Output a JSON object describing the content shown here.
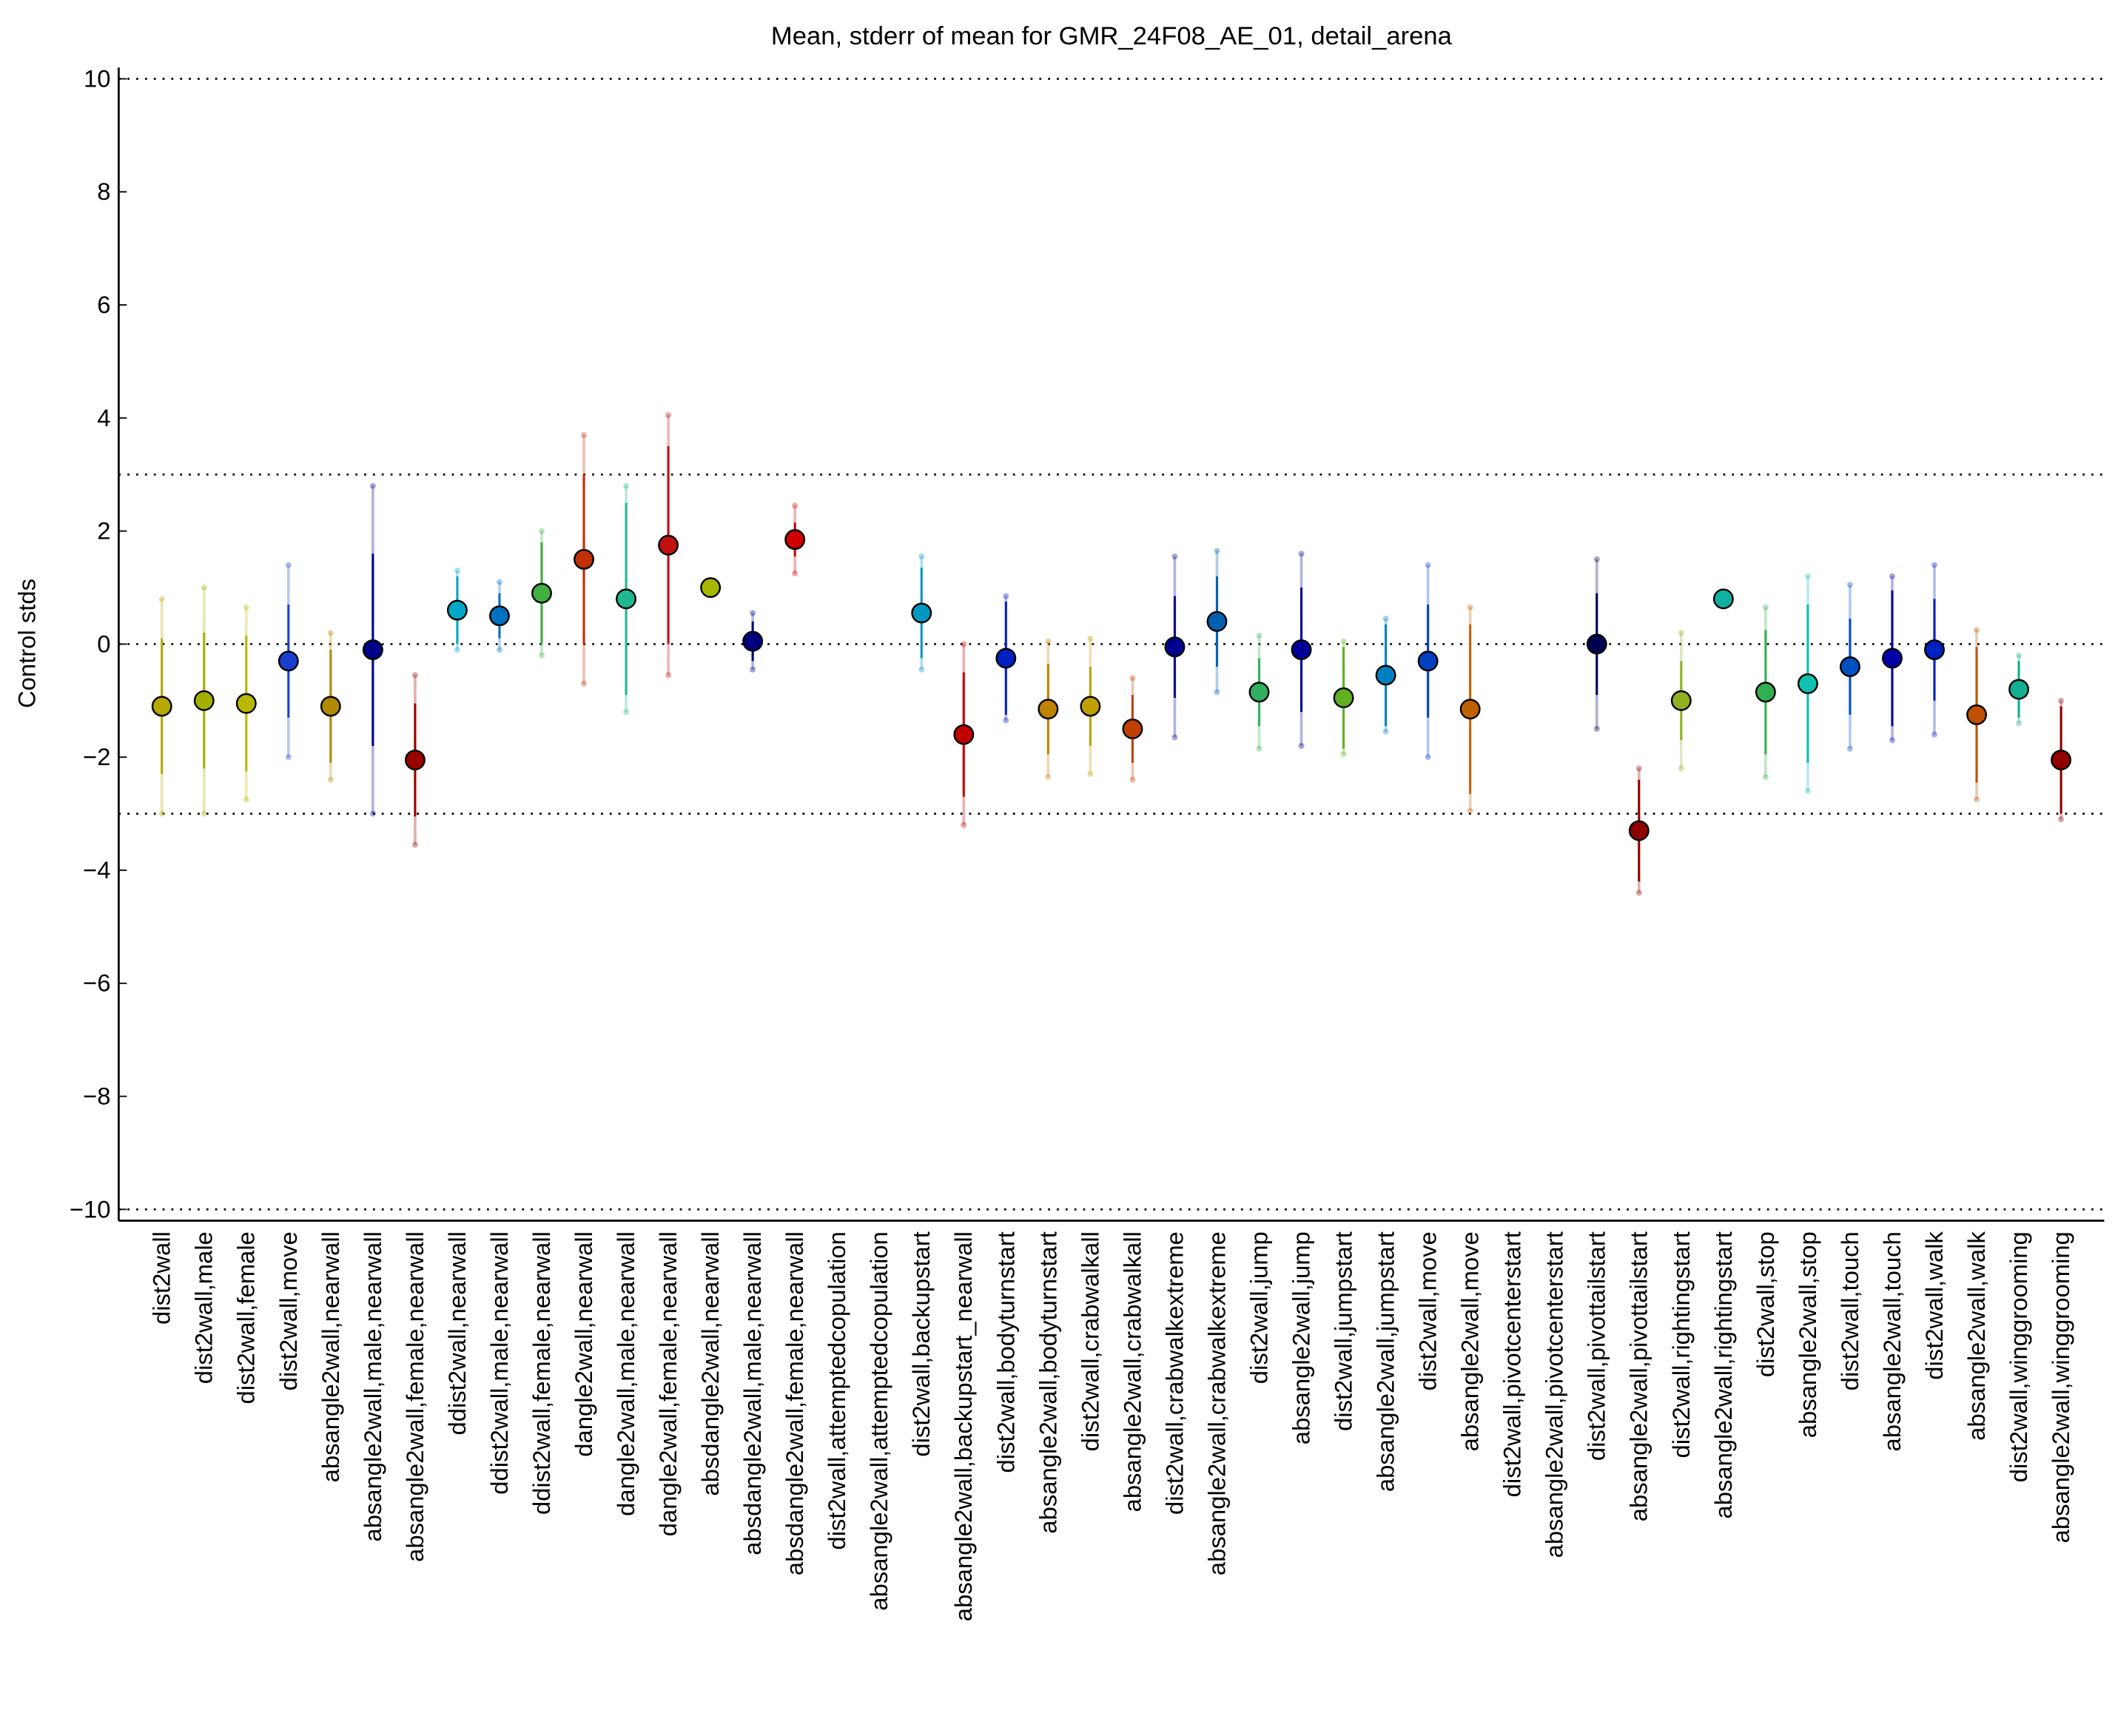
{
  "chart_data": {
    "type": "errorbar",
    "title": "Mean, stderr of mean for GMR_24F08_AE_01, detail_arena",
    "ylabel": "Control stds",
    "categories": [
      "dist2wall",
      "dist2wall,male",
      "dist2wall,female",
      "dist2wall,move",
      "absangle2wall,nearwall",
      "absangle2wall,male,nearwall",
      "absangle2wall,female,nearwall",
      "ddist2wall,nearwall",
      "ddist2wall,male,nearwall",
      "ddist2wall,female,nearwall",
      "dangle2wall,nearwall",
      "dangle2wall,male,nearwall",
      "dangle2wall,female,nearwall",
      "absdangle2wall,nearwall",
      "absdangle2wall,male,nearwall",
      "absdangle2wall,female,nearwall",
      "dist2wall,attemptedcopulation",
      "absangle2wall,attemptedcopulation",
      "dist2wall,backupstart",
      "absangle2wall,backupstart_nearwall",
      "dist2wall,bodyturnstart",
      "absangle2wall,bodyturnstart",
      "dist2wall,crabwalkall",
      "absangle2wall,crabwalkall",
      "dist2wall,crabwalkextreme",
      "absangle2wall,crabwalkextreme",
      "dist2wall,jump",
      "absangle2wall,jump",
      "dist2wall,jumpstart",
      "absangle2wall,jumpstart",
      "dist2wall,move",
      "absangle2wall,move",
      "dist2wall,pivotcenterstart",
      "absangle2wall,pivotcenterstart",
      "dist2wall,pivottailstart",
      "absangle2wall,pivottailstart",
      "dist2wall,rightingstart",
      "absangle2wall,rightingstart",
      "dist2wall,stop",
      "absangle2wall,stop",
      "dist2wall,touch",
      "absangle2wall,touch",
      "dist2wall,walk",
      "absangle2wall,walk",
      "dist2wall,winggrooming",
      "absangle2wall,winggrooming"
    ],
    "values": [
      -1.1,
      -1.0,
      -1.05,
      -0.3,
      -1.1,
      -0.1,
      -2.05,
      0.6,
      0.5,
      0.9,
      1.5,
      0.8,
      1.75,
      1.0,
      0.05,
      1.85,
      null,
      null,
      0.55,
      -1.6,
      -0.25,
      -1.15,
      -1.1,
      -1.5,
      -0.05,
      0.4,
      -0.85,
      -0.1,
      -0.95,
      -0.55,
      -0.3,
      -1.15,
      null,
      null,
      0.0,
      -3.3,
      -1.0,
      0.8,
      -0.85,
      -0.7,
      -0.4,
      -0.25,
      -0.1,
      -1.25,
      -0.8,
      -2.05
    ],
    "errors": [
      1.2,
      1.2,
      1.2,
      1.0,
      1.0,
      1.7,
      1.0,
      0.6,
      0.4,
      0.9,
      1.5,
      1.7,
      1.75,
      0,
      0.35,
      0.3,
      null,
      null,
      0.8,
      1.1,
      1.0,
      0.8,
      0.7,
      0.6,
      0.9,
      0.8,
      0.6,
      1.1,
      0.9,
      0.9,
      1.0,
      1.5,
      null,
      null,
      0.9,
      0.9,
      0.7,
      0,
      1.1,
      1.4,
      0.85,
      1.2,
      0.9,
      1.2,
      0.5,
      0.95
    ],
    "spread": [
      1.9,
      2.0,
      1.7,
      1.7,
      1.3,
      2.9,
      1.5,
      0.7,
      0.6,
      1.1,
      2.2,
      2.0,
      2.3,
      0,
      0.5,
      0.6,
      null,
      null,
      1.0,
      1.6,
      1.1,
      1.2,
      1.2,
      0.9,
      1.6,
      1.25,
      1.0,
      1.7,
      1.0,
      1.0,
      1.7,
      1.8,
      null,
      null,
      1.5,
      1.1,
      1.2,
      0,
      1.5,
      1.9,
      1.45,
      1.45,
      1.5,
      1.5,
      0.6,
      1.05
    ],
    "colors": [
      "#b5a800",
      "#a3b000",
      "#b8b800",
      "#1a3fcf",
      "#b08a00",
      "#00008b",
      "#9b0000",
      "#00a8c8",
      "#0070c0",
      "#40b040",
      "#c03000",
      "#20b890",
      "#c01010",
      "#a8b800",
      "#000080",
      "#d00000",
      "#999999",
      "#999999",
      "#0098c0",
      "#c00000",
      "#0020c0",
      "#c08000",
      "#c0a000",
      "#c04000",
      "#000090",
      "#0060b0",
      "#30b060",
      "#000098",
      "#60b020",
      "#0080c0",
      "#0040c0",
      "#c06000",
      "#999999",
      "#999999",
      "#000050",
      "#900000",
      "#90b020",
      "#10b0a0",
      "#30b050",
      "#10c0b0",
      "#0050c0",
      "#0000a8",
      "#0020c0",
      "#c05000",
      "#10b090",
      "#900000"
    ],
    "ylim": [
      -10.2,
      10.2
    ],
    "yticks": [
      {
        "value": -10,
        "label": "−10"
      },
      {
        "value": -8,
        "label": "−8"
      },
      {
        "value": -6,
        "label": "−6"
      },
      {
        "value": -4,
        "label": "−4"
      },
      {
        "value": -2,
        "label": "−2"
      },
      0,
      2,
      4,
      6,
      8,
      10
    ],
    "reference_lines": [
      10,
      3,
      0,
      -3,
      -10
    ]
  }
}
